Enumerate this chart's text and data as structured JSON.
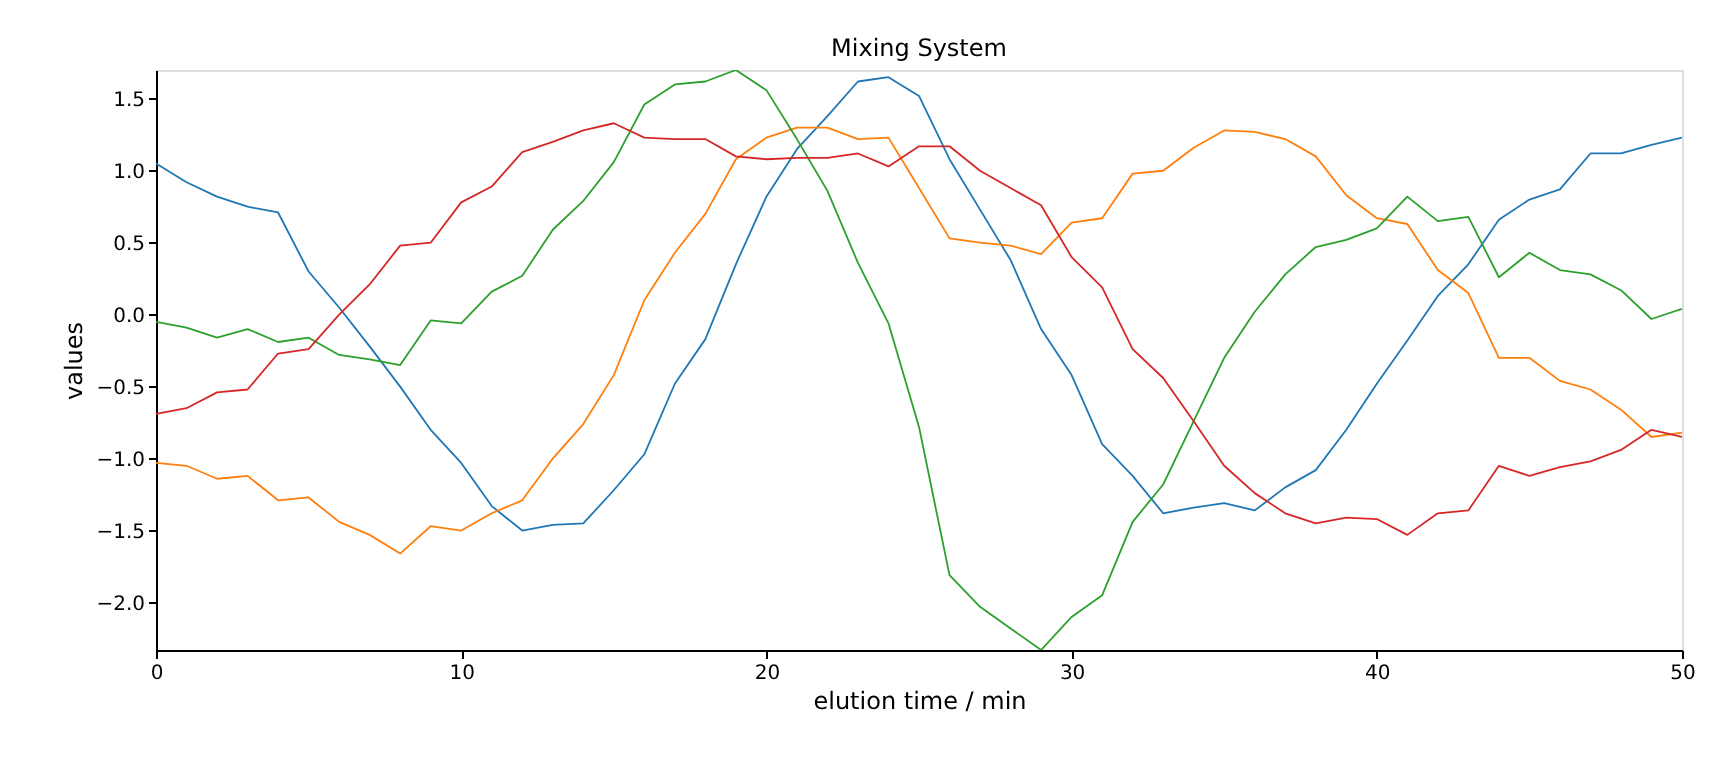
{
  "chart_data": {
    "type": "line",
    "title": "Mixing System",
    "xlabel": "elution time / min",
    "ylabel": "values",
    "x": [
      0,
      1,
      2,
      3,
      4,
      5,
      6,
      7,
      8,
      9,
      10,
      11,
      12,
      13,
      14,
      15,
      16,
      17,
      18,
      19,
      20,
      21,
      22,
      23,
      24,
      25,
      26,
      27,
      28,
      29,
      30,
      31,
      32,
      33,
      34,
      35,
      36,
      37,
      38,
      39,
      40,
      41,
      42,
      43,
      44,
      45,
      46,
      47,
      48,
      49,
      50
    ],
    "series": [
      {
        "color": "#1f77b4",
        "values": [
          1.05,
          0.92,
          0.82,
          0.75,
          0.71,
          0.3,
          0.05,
          -0.22,
          -0.5,
          -0.8,
          -1.03,
          -1.33,
          -1.5,
          -1.46,
          -1.45,
          -1.22,
          -0.97,
          -0.48,
          -0.17,
          0.35,
          0.82,
          1.15,
          1.38,
          1.62,
          1.65,
          1.52,
          1.08,
          0.73,
          0.38,
          -0.1,
          -0.42,
          -0.9,
          -1.12,
          -1.38,
          -1.34,
          -1.31,
          -1.36,
          -1.2,
          -1.08,
          -0.8,
          -0.48,
          -0.18,
          0.13,
          0.35,
          0.66,
          0.8,
          0.87,
          1.12,
          1.12,
          1.18,
          1.23
        ]
      },
      {
        "color": "#ff7f0e",
        "values": [
          -1.03,
          -1.05,
          -1.14,
          -1.12,
          -1.29,
          -1.27,
          -1.44,
          -1.53,
          -1.66,
          -1.47,
          -1.5,
          -1.38,
          -1.29,
          -1.0,
          -0.76,
          -0.42,
          0.1,
          0.43,
          0.7,
          1.08,
          1.23,
          1.3,
          1.3,
          1.22,
          1.23,
          0.88,
          0.53,
          0.5,
          0.48,
          0.42,
          0.64,
          0.67,
          0.98,
          1.0,
          1.16,
          1.28,
          1.27,
          1.22,
          1.1,
          0.83,
          0.67,
          0.63,
          0.31,
          0.15,
          -0.3,
          -0.3,
          -0.46,
          -0.52,
          -0.66,
          -0.85,
          -0.82
        ]
      },
      {
        "color": "#2ca02c",
        "values": [
          -0.05,
          -0.09,
          -0.16,
          -0.1,
          -0.19,
          -0.16,
          -0.28,
          -0.31,
          -0.35,
          -0.04,
          -0.06,
          0.16,
          0.27,
          0.59,
          0.79,
          1.06,
          1.46,
          1.6,
          1.62,
          1.7,
          1.56,
          1.22,
          0.86,
          0.36,
          -0.06,
          -0.78,
          -1.81,
          -2.03,
          -2.18,
          -2.33,
          -2.1,
          -1.95,
          -1.44,
          -1.18,
          -0.74,
          -0.3,
          0.02,
          0.28,
          0.47,
          0.52,
          0.6,
          0.82,
          0.65,
          0.68,
          0.26,
          0.43,
          0.31,
          0.28,
          0.17,
          -0.03,
          0.04
        ]
      },
      {
        "color": "#d62728",
        "values": [
          -0.69,
          -0.65,
          -0.54,
          -0.52,
          -0.27,
          -0.24,
          0.0,
          0.21,
          0.48,
          0.5,
          0.78,
          0.89,
          1.13,
          1.2,
          1.28,
          1.33,
          1.23,
          1.22,
          1.22,
          1.1,
          1.08,
          1.09,
          1.09,
          1.12,
          1.03,
          1.17,
          1.17,
          1.0,
          0.88,
          0.76,
          0.4,
          0.19,
          -0.24,
          -0.44,
          -0.74,
          -1.05,
          -1.24,
          -1.38,
          -1.45,
          -1.41,
          -1.42,
          -1.53,
          -1.38,
          -1.36,
          -1.05,
          -1.12,
          -1.06,
          -1.02,
          -0.94,
          -0.8,
          -0.85
        ]
      }
    ],
    "xlim": [
      0,
      50
    ],
    "xticks": [
      0,
      10,
      20,
      30,
      40,
      50
    ],
    "ylim": [
      -2.33,
      1.7
    ],
    "yticks": [
      {
        "value": -2.0,
        "label": "−2.0"
      },
      {
        "value": -1.5,
        "label": "−1.5"
      },
      {
        "value": -1.0,
        "label": "−1.0"
      },
      {
        "value": -0.5,
        "label": "−0.5"
      },
      {
        "value": 0.0,
        "label": "0.0"
      },
      {
        "value": 0.5,
        "label": "0.5"
      },
      {
        "value": 1.0,
        "label": "1.0"
      },
      {
        "value": 1.5,
        "label": "1.5"
      }
    ],
    "grid": false,
    "legend": false,
    "marker": "none",
    "line_style": "solid"
  }
}
